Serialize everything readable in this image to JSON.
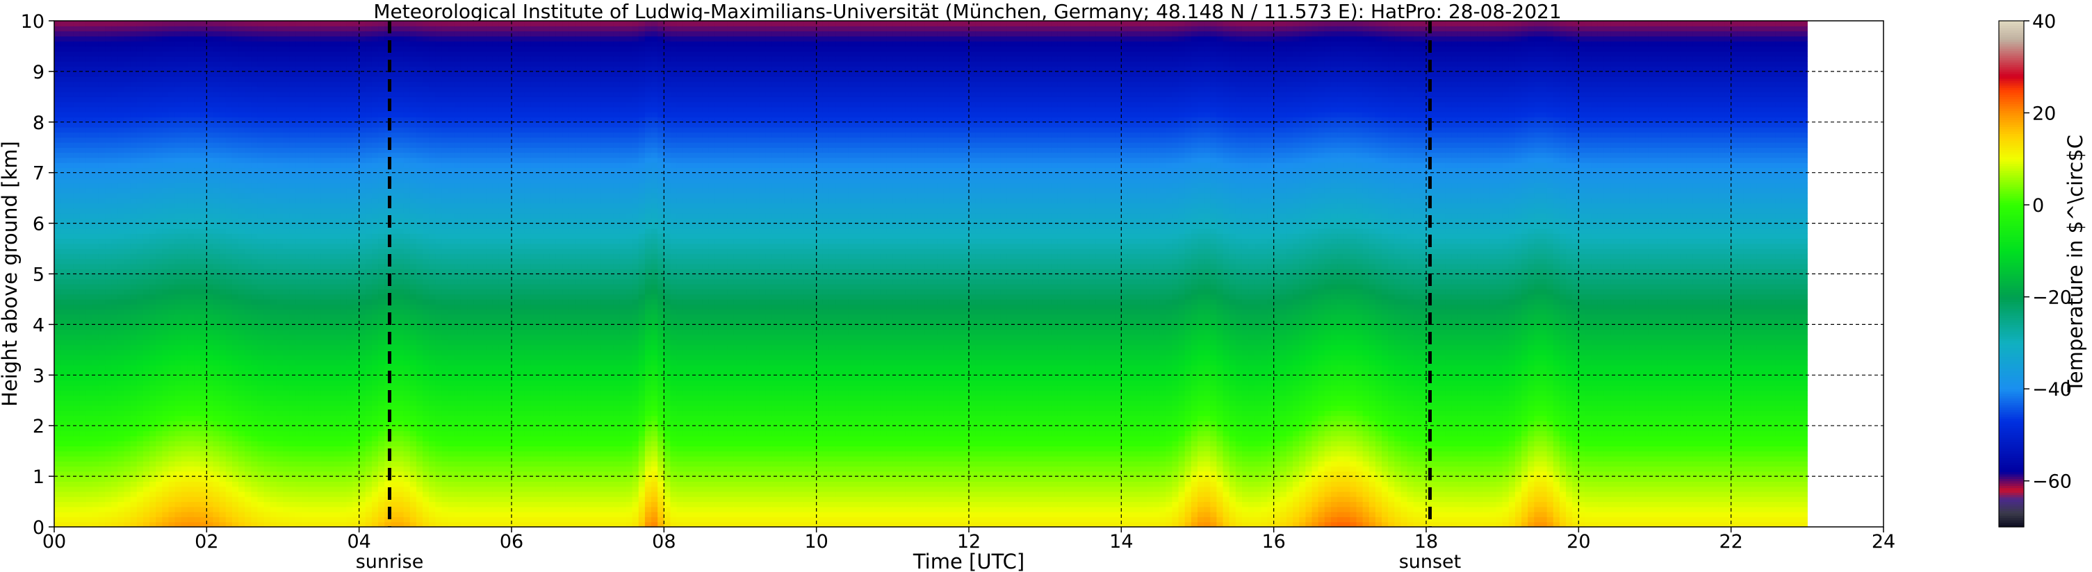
{
  "chart_data": {
    "type": "heatmap",
    "title": "Meteorological Institute of Ludwig-Maximilians-Universität (München, Germany; 48.148 N / 11.573 E):    HatPro: 28-08-2021",
    "xlabel": "Time [UTC]",
    "ylabel": "Height above ground [km]",
    "xlim": [
      0,
      24
    ],
    "ylim": [
      0,
      10
    ],
    "x_ticks": [
      "00",
      "02",
      "04",
      "06",
      "08",
      "10",
      "12",
      "14",
      "16",
      "18",
      "20",
      "22",
      "24"
    ],
    "y_ticks": [
      "0",
      "1",
      "2",
      "3",
      "4",
      "5",
      "6",
      "7",
      "8",
      "9",
      "10"
    ],
    "data_end_hour": 23,
    "grid": true,
    "events": [
      {
        "label": "sunrise",
        "time_utc": 4.4
      },
      {
        "label": "sunset",
        "time_utc": 18.05
      }
    ],
    "colorbar": {
      "label": "Temperature in $^\\circ$C",
      "range": [
        -70,
        40
      ],
      "ticks": [
        "40",
        "20",
        "0",
        "−20",
        "−40",
        "−60"
      ],
      "colors": [
        {
          "t": -70,
          "c": "#0a0a1e"
        },
        {
          "t": -67,
          "c": "#3a3a4a"
        },
        {
          "t": -64,
          "c": "#4a2a8a"
        },
        {
          "t": -62,
          "c": "#c8102e"
        },
        {
          "t": -58,
          "c": "#0000a0"
        },
        {
          "t": -47,
          "c": "#0030e0"
        },
        {
          "t": -40,
          "c": "#1a8ff0"
        },
        {
          "t": -30,
          "c": "#10b0c0"
        },
        {
          "t": -20,
          "c": "#00a050"
        },
        {
          "t": -10,
          "c": "#00e020"
        },
        {
          "t": 0,
          "c": "#30ff00"
        },
        {
          "t": 10,
          "c": "#f0ff00"
        },
        {
          "t": 15,
          "c": "#ffd000"
        },
        {
          "t": 20,
          "c": "#ff9000"
        },
        {
          "t": 25,
          "c": "#ff4000"
        },
        {
          "t": 28,
          "c": "#d00020"
        },
        {
          "t": 36,
          "c": "#c0b0a0"
        },
        {
          "t": 40,
          "c": "#e0d8c0"
        }
      ]
    },
    "profile": {
      "surface_temperature": 12,
      "lapse_rate_per_km": -7.3,
      "warm_spells": [
        {
          "center_hour": 1.8,
          "width_hours": 0.7,
          "surface_anomaly": 8
        },
        {
          "center_hour": 4.5,
          "width_hours": 0.35,
          "surface_anomaly": 6
        },
        {
          "center_hour": 7.85,
          "width_hours": 0.15,
          "surface_anomaly": 9
        },
        {
          "center_hour": 15.1,
          "width_hours": 0.3,
          "surface_anomaly": 8
        },
        {
          "center_hour": 16.9,
          "width_hours": 0.6,
          "surface_anomaly": 11
        },
        {
          "center_hour": 19.5,
          "width_hours": 0.3,
          "surface_anomaly": 8
        }
      ]
    }
  }
}
